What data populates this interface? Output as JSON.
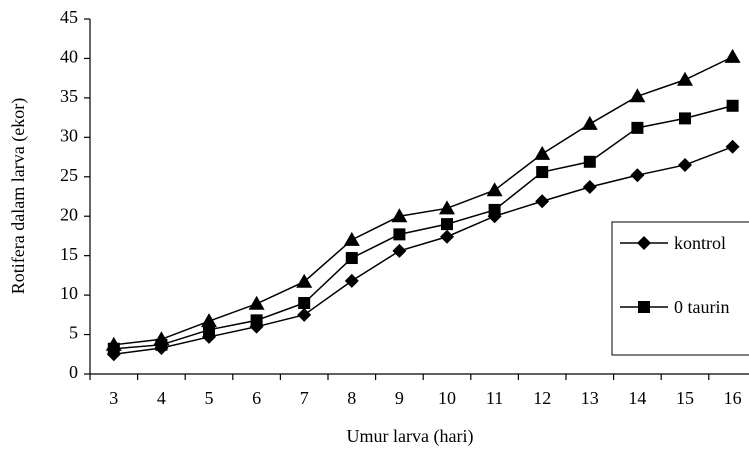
{
  "chart_data": {
    "type": "line",
    "x_label": "Umur larva (hari)",
    "y_label": "Rotifera dalam larva (ekor)",
    "categories": [
      "3",
      "4",
      "5",
      "6",
      "7",
      "8",
      "9",
      "10",
      "11",
      "12",
      "13",
      "14",
      "15",
      "16"
    ],
    "ylim": [
      0,
      45
    ],
    "yticks": [
      0,
      5,
      10,
      15,
      20,
      25,
      30,
      35,
      40,
      45
    ],
    "legend": "right",
    "series": [
      {
        "name": "kontrol",
        "color": "#000000",
        "marker": "diamond",
        "values": [
          2.5,
          3.3,
          4.7,
          6.0,
          7.5,
          11.8,
          15.6,
          17.4,
          20.0,
          21.9,
          23.7,
          25.2,
          26.5,
          28.8
        ]
      },
      {
        "name": "0 taurin",
        "color": "#000000",
        "marker": "square",
        "values": [
          3.2,
          3.7,
          5.6,
          6.8,
          9.0,
          14.7,
          17.7,
          19.0,
          20.8,
          25.6,
          26.9,
          31.2,
          32.4,
          34.0
        ]
      },
      {
        "color": "#000000",
        "marker": "triangle",
        "values": [
          3.7,
          4.4,
          6.7,
          8.9,
          11.7,
          17.0,
          20.0,
          21.0,
          23.3,
          27.9,
          31.7,
          35.2,
          37.3,
          40.2
        ]
      }
    ]
  }
}
